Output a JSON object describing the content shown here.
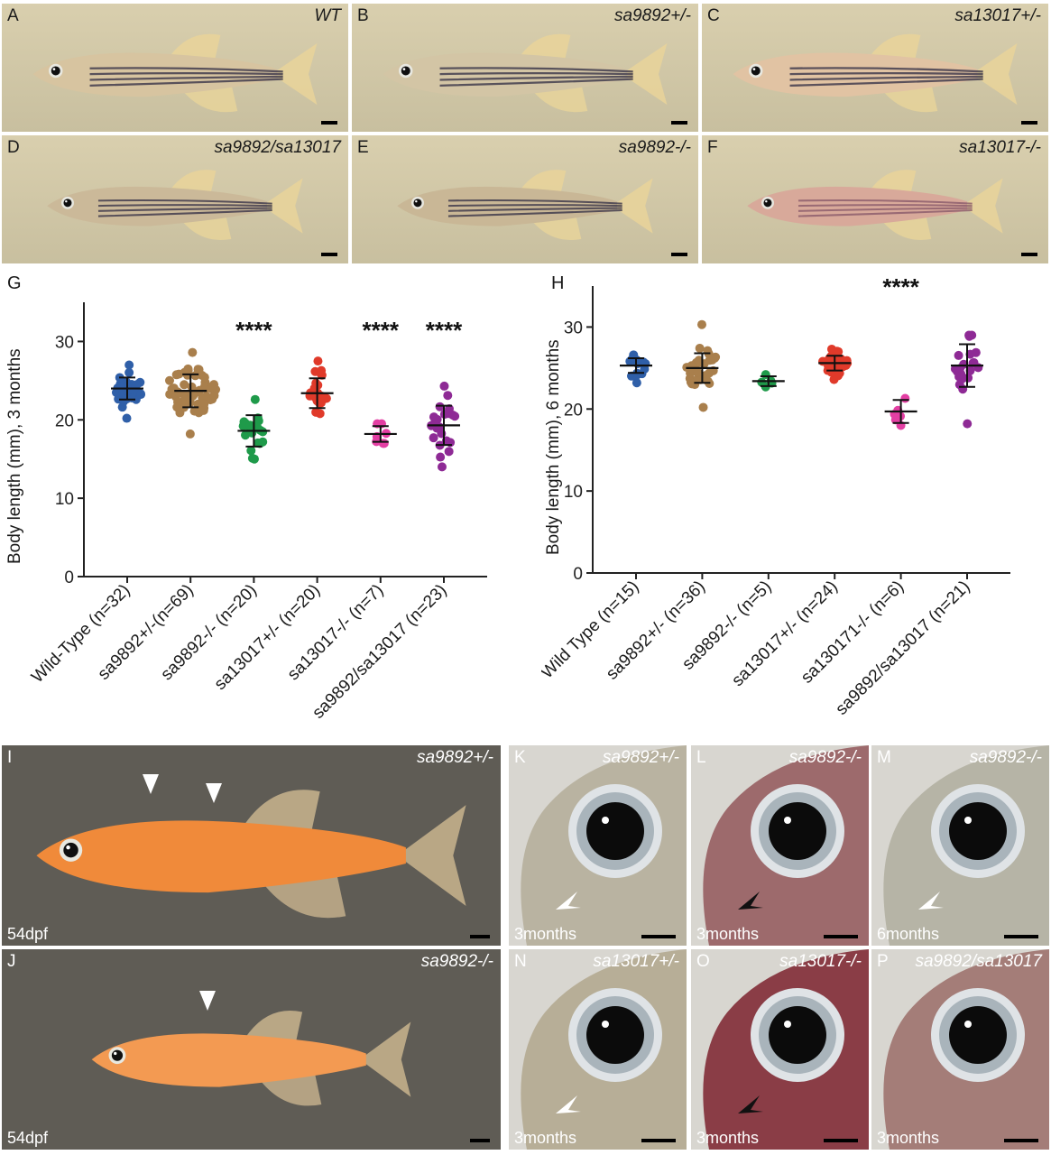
{
  "panels_top": [
    {
      "letter": "A",
      "genotype": "WT",
      "body": "#d7c4a0"
    },
    {
      "letter": "B",
      "genotype": "sa9892+/-",
      "body": "#d3c5a5"
    },
    {
      "letter": "C",
      "genotype": "sa13017+/-",
      "body": "#e1c3a3"
    },
    {
      "letter": "D",
      "genotype": "sa9892/sa13017",
      "body": "#cbb999"
    },
    {
      "letter": "E",
      "genotype": "sa9892-/-",
      "body": "#c9b796"
    },
    {
      "letter": "F",
      "genotype": "sa13017-/-",
      "body": "#d8a99a"
    }
  ],
  "panels_bottom_left": [
    {
      "letter": "I",
      "genotype": "sa9892+/-",
      "age": "54dpf"
    },
    {
      "letter": "J",
      "genotype": "sa9892-/-",
      "age": "54dpf"
    }
  ],
  "panels_bottom_right": [
    {
      "letter": "K",
      "genotype": "sa9892+/-",
      "age": "3months",
      "arrow": "white",
      "tint": "#b9b3a1"
    },
    {
      "letter": "L",
      "genotype": "sa9892-/-",
      "age": "3months",
      "arrow": "black",
      "tint": "#9d6a6c"
    },
    {
      "letter": "M",
      "genotype": "sa9892-/-",
      "age": "6months",
      "arrow": "white",
      "tint": "#b6b4a6"
    },
    {
      "letter": "N",
      "genotype": "sa13017+/-",
      "age": "3months",
      "arrow": "white",
      "tint": "#b7ae97"
    },
    {
      "letter": "O",
      "genotype": "sa13017-/-",
      "age": "3months",
      "arrow": "black",
      "tint": "#8a3d46"
    },
    {
      "letter": "P",
      "genotype": "sa9892/sa13017",
      "age": "3months",
      "arrow": "none",
      "tint": "#a47d78"
    }
  ],
  "chart_G": {
    "letter": "G"
  },
  "chart_H": {
    "letter": "H"
  },
  "chart_data": [
    {
      "type": "scatter",
      "panel": "G",
      "ylabel": "Body length (mm), 3 months",
      "ylim": [
        0,
        35
      ],
      "yticks": [
        0,
        10,
        20,
        30
      ],
      "categories": [
        "Wild-Type (n=32)",
        "sa9892+/-(n=69)",
        "sa9892-/- (n=20)",
        "sa13017+/- (n=20)",
        "sa13017-/- (n=7)",
        "sa9892/sa13017 (n=23)"
      ],
      "significance": [
        "",
        "",
        "****",
        "",
        "****",
        "****"
      ],
      "series": [
        {
          "color": "#2f5fa8",
          "n": 32,
          "mean": 24.0,
          "sd": 1.4,
          "min": 20.2,
          "max": 27.0
        },
        {
          "color": "#a97f4c",
          "n": 69,
          "mean": 23.7,
          "sd": 2.1,
          "min": 18.2,
          "max": 28.6
        },
        {
          "color": "#1f9a4a",
          "n": 20,
          "mean": 18.6,
          "sd": 2.0,
          "min": 15.0,
          "max": 22.6
        },
        {
          "color": "#e03a2a",
          "n": 20,
          "mean": 23.4,
          "sd": 1.9,
          "min": 20.8,
          "max": 27.5
        },
        {
          "color": "#e33fa3",
          "n": 7,
          "mean": 18.2,
          "sd": 1.0,
          "min": 17.0,
          "max": 19.5
        },
        {
          "color": "#8e2a95",
          "n": 23,
          "mean": 19.3,
          "sd": 2.5,
          "min": 14.0,
          "max": 24.3
        }
      ]
    },
    {
      "type": "scatter",
      "panel": "H",
      "ylabel": "Body length (mm), 6 months",
      "ylim": [
        0,
        35
      ],
      "yticks": [
        0,
        10,
        20,
        30
      ],
      "categories": [
        "Wild Type (n=15)",
        "sa9892+/- (n=36)",
        "sa9892-/- (n=5)",
        "sa13017+/- (n=24)",
        "sa130171-/- (n=6)",
        "sa9892/sa13017 (n=21)"
      ],
      "significance": [
        "",
        "",
        "",
        "",
        "****",
        ""
      ],
      "series": [
        {
          "color": "#2f5fa8",
          "n": 15,
          "mean": 25.3,
          "sd": 0.9,
          "min": 23.2,
          "max": 26.6
        },
        {
          "color": "#a97f4c",
          "n": 36,
          "mean": 25.0,
          "sd": 1.8,
          "min": 20.2,
          "max": 30.3
        },
        {
          "color": "#1f9a4a",
          "n": 5,
          "mean": 23.4,
          "sd": 0.6,
          "min": 22.7,
          "max": 24.2
        },
        {
          "color": "#e03a2a",
          "n": 24,
          "mean": 25.6,
          "sd": 0.9,
          "min": 23.6,
          "max": 27.3
        },
        {
          "color": "#e33fa3",
          "n": 6,
          "mean": 19.7,
          "sd": 1.4,
          "min": 18.0,
          "max": 21.3
        },
        {
          "color": "#8e2a95",
          "n": 21,
          "mean": 25.3,
          "sd": 2.6,
          "min": 18.2,
          "max": 29.0
        }
      ]
    }
  ]
}
